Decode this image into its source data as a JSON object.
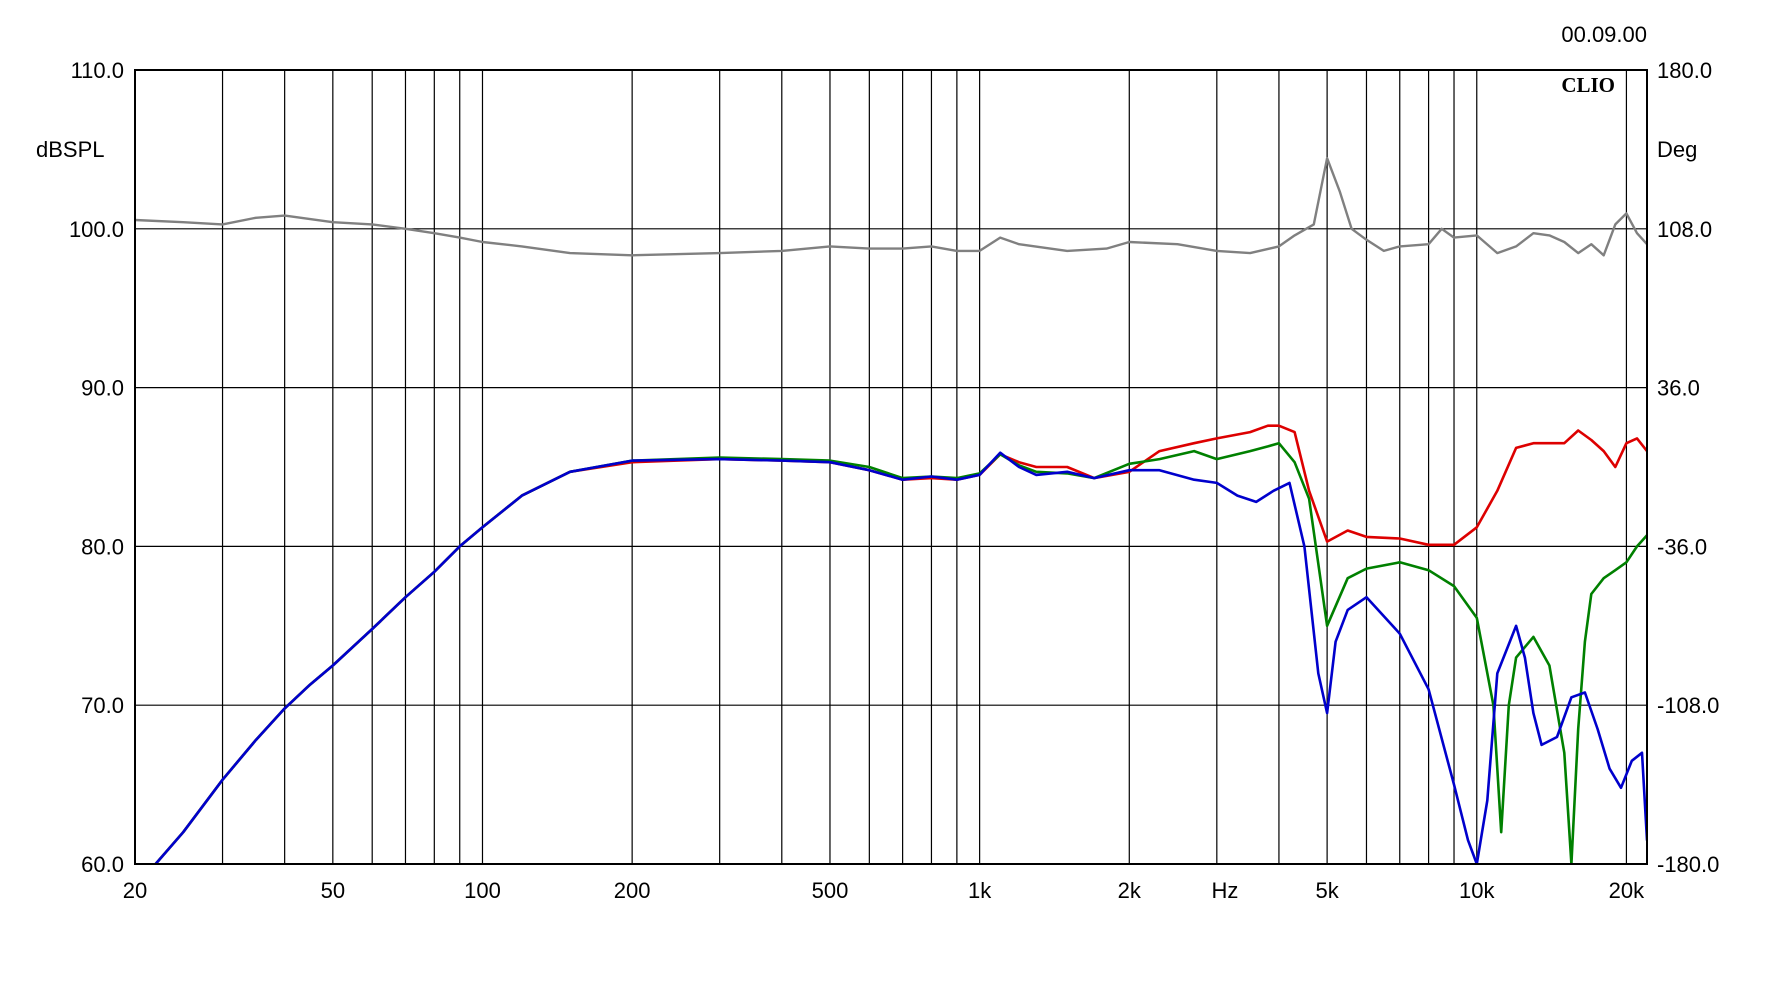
{
  "header": {
    "timestamp": "00.09.00",
    "logo": "CLIO"
  },
  "chart_data": {
    "type": "line",
    "x_scale": "log",
    "xlim": [
      20,
      22000
    ],
    "ylim": [
      60,
      110
    ],
    "y2lim": [
      -180,
      180
    ],
    "x_label": "Hz",
    "y_label": "dBSPL",
    "y2_label": "Deg",
    "grid": true,
    "x_tick_labels": [
      {
        "value": 20,
        "label": "20"
      },
      {
        "value": 50,
        "label": "50"
      },
      {
        "value": 100,
        "label": "100"
      },
      {
        "value": 200,
        "label": "200"
      },
      {
        "value": 500,
        "label": "500"
      },
      {
        "value": 1000,
        "label": "1k"
      },
      {
        "value": 2000,
        "label": "2k"
      },
      {
        "value": 5000,
        "label": "5k"
      },
      {
        "value": 10000,
        "label": "10k"
      },
      {
        "value": 20000,
        "label": "20k"
      }
    ],
    "x_grid": [
      30,
      40,
      50,
      60,
      70,
      80,
      90,
      100,
      200,
      300,
      400,
      500,
      600,
      700,
      800,
      900,
      1000,
      2000,
      3000,
      4000,
      5000,
      6000,
      7000,
      8000,
      9000,
      10000,
      20000
    ],
    "y_ticks": [
      {
        "value": 110,
        "label": "110.0"
      },
      {
        "value": 100,
        "label": "100.0"
      },
      {
        "value": 90,
        "label": "90.0"
      },
      {
        "value": 80,
        "label": "80.0"
      },
      {
        "value": 70,
        "label": "70.0"
      },
      {
        "value": 60,
        "label": "60.0"
      }
    ],
    "y2_ticks": [
      {
        "value": 180,
        "label": "180.0"
      },
      {
        "value": 108,
        "label": "108.0"
      },
      {
        "value": 36,
        "label": "36.0"
      },
      {
        "value": -36,
        "label": "-36.0"
      },
      {
        "value": -108,
        "label": "-108.0"
      },
      {
        "value": -180,
        "label": "-180.0"
      }
    ],
    "series": [
      {
        "color": "#808080",
        "axis": "y2",
        "x": [
          20,
          25,
          30,
          35,
          40,
          50,
          60,
          70,
          80,
          90,
          100,
          120,
          150,
          200,
          300,
          400,
          500,
          600,
          700,
          800,
          900,
          1000,
          1100,
          1200,
          1500,
          1800,
          2000,
          2500,
          3000,
          3500,
          4000,
          4300,
          4700,
          5000,
          5300,
          5600,
          6000,
          6500,
          7000,
          8000,
          8500,
          9000,
          10000,
          11000,
          12000,
          13000,
          14000,
          15000,
          16000,
          17000,
          18000,
          19000,
          20000,
          21000,
          22000
        ],
        "y": [
          112,
          111,
          110,
          113,
          114,
          111,
          110,
          108,
          106,
          104,
          102,
          100,
          97,
          96,
          97,
          98,
          100,
          99,
          99,
          100,
          98,
          98,
          104,
          101,
          98,
          99,
          102,
          101,
          98,
          97,
          100,
          105,
          110,
          140,
          125,
          108,
          103,
          98,
          100,
          101,
          108,
          104,
          105,
          97,
          100,
          106,
          105,
          102,
          97,
          101,
          96,
          110,
          115,
          106,
          101
        ]
      },
      {
        "color": "#dd0000",
        "axis": "y",
        "x": [
          22,
          25,
          30,
          35,
          40,
          45,
          50,
          60,
          70,
          80,
          90,
          100,
          120,
          150,
          200,
          300,
          400,
          500,
          600,
          700,
          800,
          900,
          1000,
          1100,
          1200,
          1300,
          1500,
          1700,
          2000,
          2300,
          2700,
          3000,
          3500,
          3800,
          4000,
          4300,
          4600,
          5000,
          5500,
          6000,
          7000,
          8000,
          9000,
          10000,
          11000,
          12000,
          13000,
          15000,
          16000,
          17000,
          18000,
          19000,
          20000,
          21000,
          22000
        ],
        "y": [
          60,
          62,
          65.3,
          67.8,
          69.8,
          71.3,
          72.5,
          74.8,
          76.8,
          78.4,
          80,
          81.2,
          83.2,
          84.7,
          85.3,
          85.5,
          85.4,
          85.3,
          84.8,
          84.2,
          84.3,
          84.2,
          84.5,
          85.8,
          85.3,
          85.0,
          85.0,
          84.3,
          84.7,
          86.0,
          86.5,
          86.8,
          87.2,
          87.6,
          87.6,
          87.2,
          83.5,
          80.3,
          81.0,
          80.6,
          80.5,
          80.1,
          80.1,
          81.2,
          83.5,
          86.2,
          86.5,
          86.5,
          87.3,
          86.7,
          86.0,
          85.0,
          86.5,
          86.8,
          86.0
        ]
      },
      {
        "color": "#008000",
        "axis": "y",
        "x": [
          22,
          25,
          30,
          35,
          40,
          45,
          50,
          60,
          70,
          80,
          90,
          100,
          120,
          150,
          200,
          300,
          400,
          500,
          600,
          700,
          800,
          900,
          1000,
          1100,
          1200,
          1300,
          1500,
          1700,
          2000,
          2300,
          2700,
          3000,
          3500,
          3800,
          4000,
          4300,
          4600,
          5000,
          5500,
          6000,
          7000,
          8000,
          9000,
          10000,
          10800,
          11200,
          11600,
          12000,
          13000,
          14000,
          15000,
          15500,
          16000,
          16500,
          17000,
          18000,
          19000,
          20000,
          21000,
          22000
        ],
        "y": [
          60,
          62,
          65.3,
          67.8,
          69.8,
          71.3,
          72.5,
          74.8,
          76.8,
          78.4,
          80,
          81.2,
          83.2,
          84.7,
          85.4,
          85.6,
          85.5,
          85.4,
          85.0,
          84.3,
          84.4,
          84.3,
          84.6,
          85.8,
          85.1,
          84.7,
          84.6,
          84.3,
          85.2,
          85.5,
          86.0,
          85.5,
          86.0,
          86.3,
          86.5,
          85.3,
          83.0,
          75.0,
          78.0,
          78.6,
          79.0,
          78.5,
          77.5,
          75.5,
          70.0,
          62.0,
          70.0,
          73.0,
          74.3,
          72.5,
          67.0,
          60.0,
          68.5,
          74.0,
          77.0,
          78.0,
          78.5,
          79.0,
          80.0,
          80.7
        ]
      },
      {
        "color": "#0000cc",
        "axis": "y",
        "x": [
          22,
          25,
          30,
          35,
          40,
          45,
          50,
          60,
          70,
          80,
          90,
          100,
          120,
          150,
          200,
          300,
          400,
          500,
          600,
          700,
          800,
          900,
          1000,
          1100,
          1200,
          1300,
          1500,
          1700,
          2000,
          2300,
          2700,
          3000,
          3300,
          3600,
          3900,
          4200,
          4500,
          4800,
          5000,
          5200,
          5500,
          6000,
          7000,
          8000,
          9000,
          9600,
          10000,
          10500,
          11000,
          12000,
          12500,
          13000,
          13500,
          14500,
          15500,
          16500,
          17500,
          18500,
          19500,
          20500,
          21500,
          22000
        ],
        "y": [
          60,
          62,
          65.3,
          67.8,
          69.8,
          71.3,
          72.5,
          74.8,
          76.8,
          78.4,
          80,
          81.2,
          83.2,
          84.7,
          85.4,
          85.5,
          85.4,
          85.3,
          84.8,
          84.2,
          84.4,
          84.2,
          84.5,
          85.9,
          85.0,
          84.5,
          84.7,
          84.3,
          84.8,
          84.8,
          84.2,
          84.0,
          83.2,
          82.8,
          83.5,
          84.0,
          80.0,
          72.0,
          69.5,
          74.0,
          76.0,
          76.8,
          74.5,
          71.0,
          65.0,
          61.5,
          60.0,
          64.0,
          72.0,
          75.0,
          73.0,
          69.5,
          67.5,
          68.0,
          70.5,
          70.8,
          68.5,
          66.0,
          64.8,
          66.5,
          67.0,
          61.5
        ]
      }
    ]
  }
}
